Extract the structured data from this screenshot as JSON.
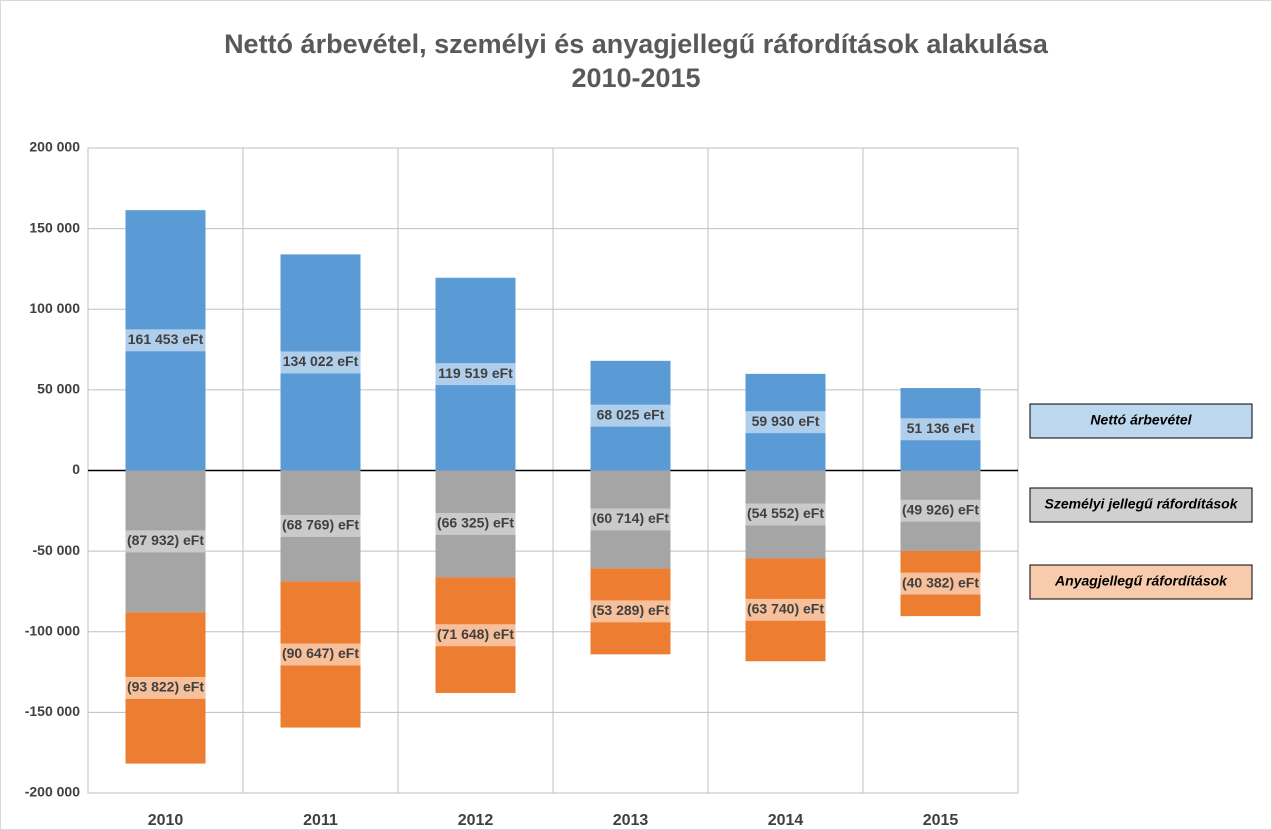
{
  "chart_data": {
    "type": "bar",
    "stacked": true,
    "title": [
      "Nettó árbevétel, személyi és anyagjellegű ráfordítások alakulása",
      "2010-2015"
    ],
    "categories": [
      "2010",
      "2011",
      "2012",
      "2013",
      "2014",
      "2015"
    ],
    "series": [
      {
        "name": "Nettó árbevétel",
        "color": "#5b9bd5",
        "values": [
          161453,
          134022,
          119519,
          68025,
          59930,
          51136
        ],
        "value_labels": [
          "161 453 eFt",
          "134 022 eFt",
          "119 519 eFt",
          "68 025 eFt",
          "59 930 eFt",
          "51 136 eFt"
        ]
      },
      {
        "name": "Személyi jellegű ráfordítások",
        "color": "#a5a5a5",
        "values": [
          -87932,
          -68769,
          -66325,
          -60714,
          -54552,
          -49926
        ],
        "value_labels": [
          "(87 932) eFt",
          "(68 769) eFt",
          "(66 325) eFt",
          "(60 714) eFt",
          "(54 552) eFt",
          "(49 926) eFt"
        ]
      },
      {
        "name": "Anyagjellegű ráfordítások",
        "color": "#ed7d31",
        "values": [
          -93822,
          -90647,
          -71648,
          -53289,
          -63740,
          -40382
        ],
        "value_labels": [
          "(93 822) eFt",
          "(90 647) eFt",
          "(71 648) eFt",
          "(53 289) eFt",
          "(63 740) eFt",
          "(40 382) eFt"
        ]
      }
    ],
    "ylim": [
      -200000,
      200000
    ],
    "yticks": [
      {
        "value": -200000,
        "label": "-200 000"
      },
      {
        "value": -150000,
        "label": "-150 000"
      },
      {
        "value": -100000,
        "label": "-100 000"
      },
      {
        "value": -50000,
        "label": "-50 000"
      },
      0,
      {
        "value": 50000,
        "label": "50 000"
      },
      {
        "value": 100000,
        "label": "100 000"
      },
      {
        "value": 150000,
        "label": "150 000"
      },
      {
        "value": 200000,
        "label": "200 000"
      }
    ],
    "grid": true,
    "legend": "right"
  }
}
